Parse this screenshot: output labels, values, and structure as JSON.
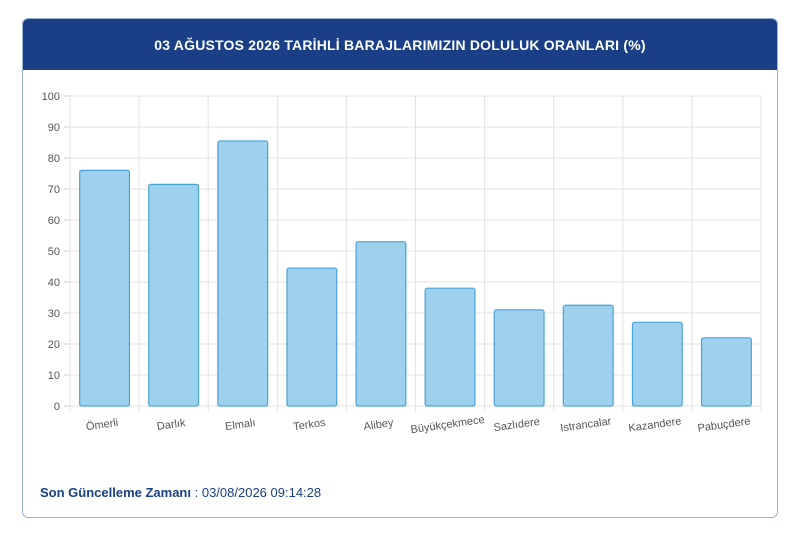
{
  "header": {
    "title": "03 AĞUSTOS 2026 TARİHLİ BARAJLARIMIZIN DOLULUK ORANLARI (%)"
  },
  "footer": {
    "label": "Son Güncelleme Zamanı",
    "separator": " : ",
    "value": "03/08/2026 09:14:28"
  },
  "colors": {
    "header_bg": "#1a3f86",
    "bar_fill": "#9ed1ee",
    "bar_stroke": "#4aa3d8"
  },
  "chart_data": {
    "type": "bar",
    "title": "03 AĞUSTOS 2026 TARİHLİ BARAJLARIMIZIN DOLULUK ORANLARI (%)",
    "categories": [
      "Ömerli",
      "Darlık",
      "Elmalı",
      "Terkos",
      "Alibey",
      "Büyükçekmece",
      "Sazlıdere",
      "Istrancalar",
      "Kazandere",
      "Pabuçdere"
    ],
    "values": [
      76,
      71.5,
      85.5,
      44.5,
      53,
      38,
      31,
      32.5,
      27,
      22
    ],
    "xlabel": "",
    "ylabel": "",
    "ylim": [
      0,
      100
    ],
    "yticks": [
      "0",
      "10",
      "20",
      "30",
      "40",
      "50",
      "60",
      "70",
      "80",
      "90",
      "100"
    ],
    "grid": true
  }
}
